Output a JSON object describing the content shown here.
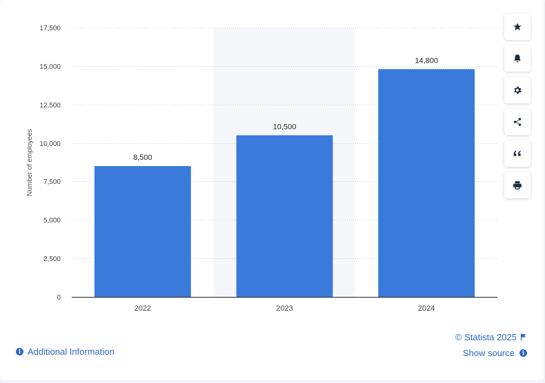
{
  "chart_data": {
    "type": "bar",
    "categories": [
      "2022",
      "2023",
      "2024"
    ],
    "values": [
      8500,
      10500,
      14800
    ],
    "data_labels": [
      "8,500",
      "10,500",
      "14,800"
    ],
    "ylabel": "Number of employees",
    "xlabel": "",
    "ylim": [
      0,
      17500
    ],
    "yticks": [
      0,
      2500,
      5000,
      7500,
      10000,
      12500,
      15000,
      17500
    ],
    "ytick_labels": [
      "0",
      "2,500",
      "5,000",
      "7,500",
      "10,000",
      "12,500",
      "15,000",
      "17,500"
    ],
    "grid": true,
    "highlighted_category": "2023",
    "bar_color": "#3a7adb"
  },
  "toolbar": {
    "buttons": [
      {
        "name": "favorite-button",
        "icon": "star-icon"
      },
      {
        "name": "notification-button",
        "icon": "bell-icon"
      },
      {
        "name": "settings-button",
        "icon": "gear-icon"
      },
      {
        "name": "share-button",
        "icon": "share-icon"
      },
      {
        "name": "cite-button",
        "icon": "quote-icon"
      },
      {
        "name": "print-button",
        "icon": "print-icon"
      }
    ]
  },
  "footer": {
    "additional_info": "Additional Information",
    "credit": "© Statista 2025",
    "show_source": "Show source"
  },
  "colors": {
    "accent": "#2d67c4",
    "bar": "#3a7adb",
    "highlight_band": "#f5f7fb"
  }
}
